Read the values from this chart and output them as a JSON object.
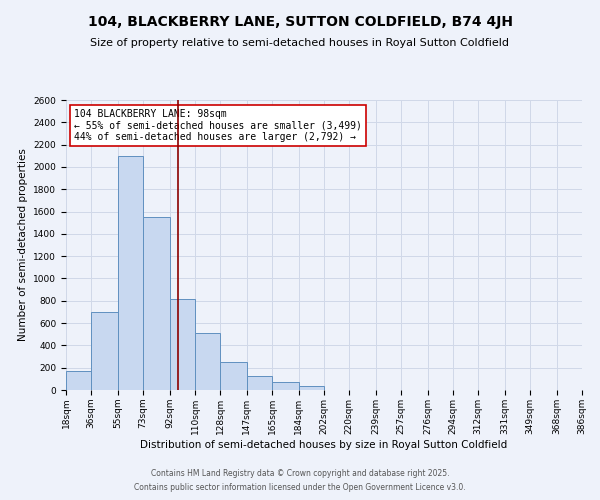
{
  "title": "104, BLACKBERRY LANE, SUTTON COLDFIELD, B74 4JH",
  "subtitle": "Size of property relative to semi-detached houses in Royal Sutton Coldfield",
  "xlabel": "Distribution of semi-detached houses by size in Royal Sutton Coldfield",
  "ylabel": "Number of semi-detached properties",
  "bin_labels": [
    "18sqm",
    "36sqm",
    "55sqm",
    "73sqm",
    "92sqm",
    "110sqm",
    "128sqm",
    "147sqm",
    "165sqm",
    "184sqm",
    "202sqm",
    "220sqm",
    "239sqm",
    "257sqm",
    "276sqm",
    "294sqm",
    "312sqm",
    "331sqm",
    "349sqm",
    "368sqm",
    "386sqm"
  ],
  "bin_edges": [
    18,
    36,
    55,
    73,
    92,
    110,
    128,
    147,
    165,
    184,
    202,
    220,
    239,
    257,
    276,
    294,
    312,
    331,
    349,
    368,
    386
  ],
  "bar_heights": [
    170,
    700,
    2100,
    1550,
    820,
    510,
    250,
    130,
    70,
    40,
    0,
    0,
    0,
    0,
    0,
    0,
    0,
    0,
    0,
    0
  ],
  "bar_color": "#c8d8f0",
  "bar_edge_color": "#6090c0",
  "grid_color": "#d0d8e8",
  "bg_color": "#eef2fa",
  "vline_x": 98,
  "vline_color": "#8b0000",
  "annotation_title": "104 BLACKBERRY LANE: 98sqm",
  "annotation_line1": "← 55% of semi-detached houses are smaller (3,499)",
  "annotation_line2": "44% of semi-detached houses are larger (2,792) →",
  "annotation_box_color": "#ffffff",
  "annotation_border_color": "#cc0000",
  "ylim": [
    0,
    2600
  ],
  "yticks": [
    0,
    200,
    400,
    600,
    800,
    1000,
    1200,
    1400,
    1600,
    1800,
    2000,
    2200,
    2400,
    2600
  ],
  "footer1": "Contains HM Land Registry data © Crown copyright and database right 2025.",
  "footer2": "Contains public sector information licensed under the Open Government Licence v3.0.",
  "title_fontsize": 10,
  "subtitle_fontsize": 8,
  "xlabel_fontsize": 7.5,
  "ylabel_fontsize": 7.5,
  "tick_fontsize": 6.5,
  "annotation_fontsize": 7,
  "footer_fontsize": 5.5
}
